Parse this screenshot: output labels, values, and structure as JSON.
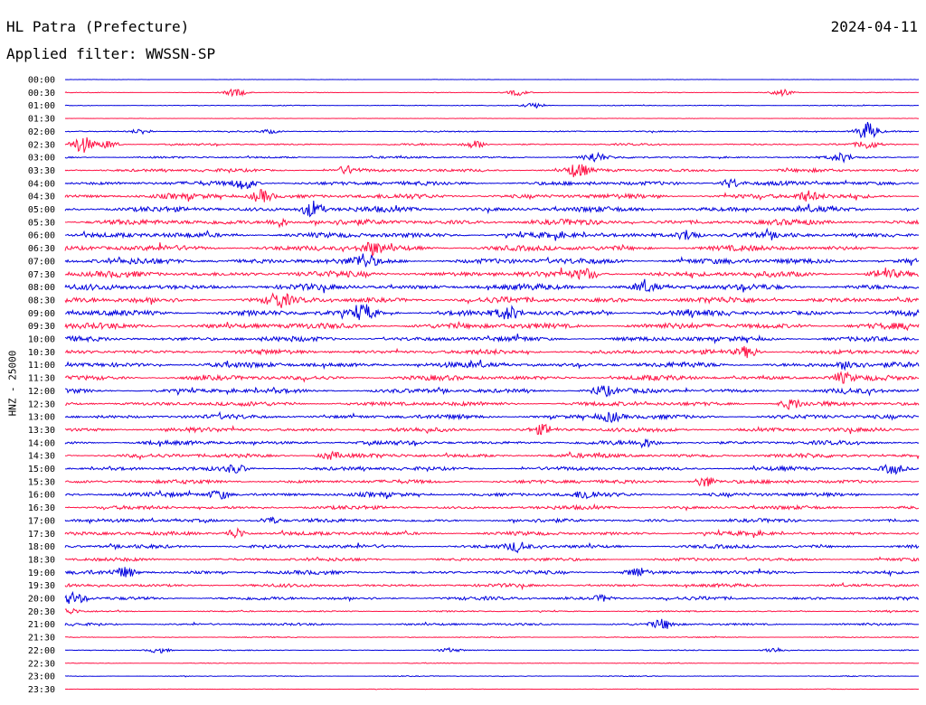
{
  "header": {
    "station": "HL Patra (Prefecture)",
    "date": "2024-04-11",
    "filter": "Applied filter: WWSSN-SP"
  },
  "colors": {
    "odd_trace": "#0000dd",
    "even_trace": "#ff1144",
    "text": "#000000"
  },
  "chart_data": {
    "type": "line",
    "subtype": "helicorder",
    "ylabel": "HNZ - 25000",
    "row_labels": [
      "00:00",
      "00:30",
      "01:00",
      "01:30",
      "02:00",
      "02:30",
      "03:00",
      "03:30",
      "04:00",
      "04:30",
      "05:00",
      "05:30",
      "06:00",
      "06:30",
      "07:00",
      "07:30",
      "08:00",
      "08:30",
      "09:00",
      "09:30",
      "10:00",
      "10:30",
      "11:00",
      "11:30",
      "12:00",
      "12:30",
      "13:00",
      "13:30",
      "14:00",
      "14:30",
      "15:00",
      "15:30",
      "16:00",
      "16:30",
      "17:00",
      "17:30",
      "18:00",
      "18:30",
      "19:00",
      "19:30",
      "20:00",
      "20:30",
      "21:00",
      "21:30",
      "22:00",
      "22:30",
      "23:00",
      "23:30"
    ],
    "trace_colors": [
      "#0000dd",
      "#ff1144"
    ],
    "noise_level": [
      0.2,
      0.4,
      0.5,
      0.3,
      0.8,
      1.2,
      1.3,
      2.0,
      2.6,
      3.0,
      3.2,
      3.4,
      3.3,
      3.4,
      3.6,
      3.6,
      3.5,
      3.6,
      3.5,
      3.6,
      3.0,
      2.8,
      3.2,
      3.0,
      2.8,
      2.7,
      2.7,
      2.6,
      2.5,
      2.6,
      2.4,
      2.4,
      2.6,
      2.3,
      2.2,
      2.4,
      2.3,
      2.0,
      2.3,
      2.0,
      2.1,
      0.9,
      1.5,
      0.6,
      0.6,
      0.4,
      0.5,
      0.3
    ],
    "events": [
      {
        "row": 1,
        "t": 0.2,
        "amp": 4
      },
      {
        "row": 1,
        "t": 0.53,
        "amp": 3
      },
      {
        "row": 1,
        "t": 0.84,
        "amp": 4
      },
      {
        "row": 2,
        "t": 0.55,
        "amp": 3
      },
      {
        "row": 4,
        "t": 0.09,
        "amp": 3
      },
      {
        "row": 4,
        "t": 0.24,
        "amp": 2
      },
      {
        "row": 4,
        "t": 0.94,
        "amp": 10
      },
      {
        "row": 5,
        "t": 0.02,
        "amp": 9
      },
      {
        "row": 5,
        "t": 0.05,
        "amp": 4
      },
      {
        "row": 5,
        "t": 0.48,
        "amp": 4
      },
      {
        "row": 5,
        "t": 0.94,
        "amp": 4
      },
      {
        "row": 6,
        "t": 0.62,
        "amp": 5
      },
      {
        "row": 6,
        "t": 0.91,
        "amp": 4
      },
      {
        "row": 7,
        "t": 0.33,
        "amp": 4
      },
      {
        "row": 7,
        "t": 0.6,
        "amp": 7
      },
      {
        "row": 8,
        "t": 0.21,
        "amp": 6
      },
      {
        "row": 8,
        "t": 0.78,
        "amp": 5
      },
      {
        "row": 9,
        "t": 0.23,
        "amp": 7
      },
      {
        "row": 9,
        "t": 0.87,
        "amp": 5
      },
      {
        "row": 10,
        "t": 0.29,
        "amp": 9
      },
      {
        "row": 11,
        "t": 0.25,
        "amp": 5
      },
      {
        "row": 12,
        "t": 0.73,
        "amp": 6
      },
      {
        "row": 13,
        "t": 0.36,
        "amp": 6
      },
      {
        "row": 14,
        "t": 0.35,
        "amp": 6
      },
      {
        "row": 15,
        "t": 0.61,
        "amp": 5
      },
      {
        "row": 15,
        "t": 0.96,
        "amp": 5
      },
      {
        "row": 16,
        "t": 0.68,
        "amp": 5
      },
      {
        "row": 17,
        "t": 0.25,
        "amp": 7
      },
      {
        "row": 18,
        "t": 0.35,
        "amp": 8
      },
      {
        "row": 18,
        "t": 0.52,
        "amp": 6
      },
      {
        "row": 21,
        "t": 0.8,
        "amp": 6
      },
      {
        "row": 22,
        "t": 0.92,
        "amp": 5
      },
      {
        "row": 23,
        "t": 0.91,
        "amp": 5
      },
      {
        "row": 24,
        "t": 0.63,
        "amp": 5
      },
      {
        "row": 25,
        "t": 0.85,
        "amp": 5
      },
      {
        "row": 26,
        "t": 0.64,
        "amp": 5
      },
      {
        "row": 27,
        "t": 0.56,
        "amp": 5
      },
      {
        "row": 28,
        "t": 0.68,
        "amp": 4
      },
      {
        "row": 29,
        "t": 0.31,
        "amp": 4
      },
      {
        "row": 30,
        "t": 0.2,
        "amp": 4
      },
      {
        "row": 30,
        "t": 0.97,
        "amp": 5
      },
      {
        "row": 31,
        "t": 0.75,
        "amp": 6
      },
      {
        "row": 32,
        "t": 0.18,
        "amp": 5
      },
      {
        "row": 32,
        "t": 0.61,
        "amp": 4
      },
      {
        "row": 34,
        "t": 0.24,
        "amp": 4
      },
      {
        "row": 35,
        "t": 0.2,
        "amp": 6
      },
      {
        "row": 36,
        "t": 0.53,
        "amp": 5
      },
      {
        "row": 38,
        "t": 0.07,
        "amp": 5
      },
      {
        "row": 38,
        "t": 0.67,
        "amp": 5
      },
      {
        "row": 40,
        "t": 0.01,
        "amp": 6
      },
      {
        "row": 40,
        "t": 0.63,
        "amp": 3
      },
      {
        "row": 41,
        "t": 0.005,
        "amp": 3
      },
      {
        "row": 42,
        "t": 0.7,
        "amp": 5
      },
      {
        "row": 44,
        "t": 0.11,
        "amp": 3
      },
      {
        "row": 44,
        "t": 0.45,
        "amp": 2
      },
      {
        "row": 44,
        "t": 0.83,
        "amp": 3
      }
    ]
  }
}
